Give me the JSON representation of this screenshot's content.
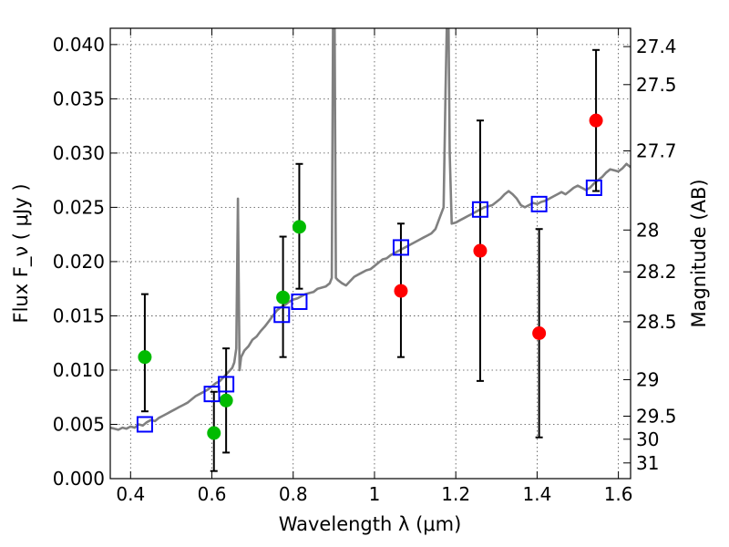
{
  "chart_data": {
    "type": "scatter",
    "title": "",
    "xlabel": "Wavelength  λ (μm)",
    "ylabel": "Flux  F_ν  ( μJy )",
    "ylabel_right": "Magnitude (AB)",
    "xlim": [
      0.35,
      1.63
    ],
    "ylim": [
      0.0,
      0.0415
    ],
    "grid": true,
    "x_ticks": [
      0.4,
      0.6,
      0.8,
      1.0,
      1.2,
      1.4,
      1.6
    ],
    "x_tick_labels": [
      "0.4",
      "0.6",
      "0.8",
      "1",
      "1.2",
      "1.4",
      "1.6"
    ],
    "y_ticks": [
      0.0,
      0.005,
      0.01,
      0.015,
      0.02,
      0.025,
      0.03,
      0.035,
      0.04
    ],
    "y_tick_labels": [
      "0.000",
      "0.005",
      "0.010",
      "0.015",
      "0.020",
      "0.025",
      "0.030",
      "0.035",
      "0.040"
    ],
    "right_axis_ticks": [
      {
        "label": "27.4",
        "mag": 27.4
      },
      {
        "label": "27.5",
        "mag": 27.5
      },
      {
        "label": "27.7",
        "mag": 27.7
      },
      {
        "label": "28",
        "mag": 28.0
      },
      {
        "label": "28.2",
        "mag": 28.2
      },
      {
        "label": "28.5",
        "mag": 28.5
      },
      {
        "label": "29",
        "mag": 29.0
      },
      {
        "label": "29.5",
        "mag": 29.5
      },
      {
        "label": "30",
        "mag": 30.0
      },
      {
        "label": "31",
        "mag": 31.0
      }
    ],
    "template_spectrum": {
      "color": "#808080",
      "points": [
        [
          0.35,
          0.0047
        ],
        [
          0.36,
          0.0046
        ],
        [
          0.37,
          0.0045
        ],
        [
          0.38,
          0.0047
        ],
        [
          0.39,
          0.0046
        ],
        [
          0.4,
          0.0048
        ],
        [
          0.41,
          0.0047
        ],
        [
          0.42,
          0.005
        ],
        [
          0.43,
          0.0049
        ],
        [
          0.44,
          0.0052
        ],
        [
          0.45,
          0.0054
        ],
        [
          0.46,
          0.0053
        ],
        [
          0.47,
          0.0056
        ],
        [
          0.48,
          0.0058
        ],
        [
          0.49,
          0.006
        ],
        [
          0.5,
          0.0062
        ],
        [
          0.51,
          0.0064
        ],
        [
          0.52,
          0.0066
        ],
        [
          0.53,
          0.0068
        ],
        [
          0.54,
          0.007
        ],
        [
          0.55,
          0.0073
        ],
        [
          0.56,
          0.0076
        ],
        [
          0.57,
          0.0078
        ],
        [
          0.58,
          0.008
        ],
        [
          0.59,
          0.0082
        ],
        [
          0.6,
          0.0085
        ],
        [
          0.61,
          0.0088
        ],
        [
          0.62,
          0.009
        ],
        [
          0.63,
          0.0094
        ],
        [
          0.64,
          0.0098
        ],
        [
          0.65,
          0.0102
        ],
        [
          0.655,
          0.0107
        ],
        [
          0.66,
          0.012
        ],
        [
          0.664,
          0.0258
        ],
        [
          0.668,
          0.01
        ],
        [
          0.672,
          0.0112
        ],
        [
          0.68,
          0.0118
        ],
        [
          0.69,
          0.0122
        ],
        [
          0.7,
          0.0128
        ],
        [
          0.71,
          0.0131
        ],
        [
          0.72,
          0.0136
        ],
        [
          0.73,
          0.014
        ],
        [
          0.74,
          0.0145
        ],
        [
          0.75,
          0.015
        ],
        [
          0.76,
          0.0155
        ],
        [
          0.77,
          0.0158
        ],
        [
          0.78,
          0.016
        ],
        [
          0.79,
          0.0163
        ],
        [
          0.8,
          0.0165
        ],
        [
          0.81,
          0.0166
        ],
        [
          0.82,
          0.0168
        ],
        [
          0.83,
          0.017
        ],
        [
          0.84,
          0.0171
        ],
        [
          0.85,
          0.0172
        ],
        [
          0.86,
          0.0175
        ],
        [
          0.87,
          0.0176
        ],
        [
          0.88,
          0.0177
        ],
        [
          0.89,
          0.018
        ],
        [
          0.895,
          0.0185
        ],
        [
          0.898,
          0.042
        ],
        [
          0.902,
          0.042
        ],
        [
          0.905,
          0.0185
        ],
        [
          0.91,
          0.0183
        ],
        [
          0.92,
          0.018
        ],
        [
          0.93,
          0.0178
        ],
        [
          0.94,
          0.0182
        ],
        [
          0.95,
          0.0186
        ],
        [
          0.96,
          0.0188
        ],
        [
          0.97,
          0.019
        ],
        [
          0.98,
          0.0192
        ],
        [
          0.99,
          0.0193
        ],
        [
          1.0,
          0.0196
        ],
        [
          1.01,
          0.0199
        ],
        [
          1.02,
          0.0202
        ],
        [
          1.03,
          0.0203
        ],
        [
          1.04,
          0.0206
        ],
        [
          1.05,
          0.0208
        ],
        [
          1.06,
          0.021
        ],
        [
          1.07,
          0.0212
        ],
        [
          1.08,
          0.0214
        ],
        [
          1.09,
          0.0216
        ],
        [
          1.1,
          0.0218
        ],
        [
          1.11,
          0.022
        ],
        [
          1.12,
          0.0222
        ],
        [
          1.13,
          0.0224
        ],
        [
          1.14,
          0.0226
        ],
        [
          1.15,
          0.023
        ],
        [
          1.16,
          0.024
        ],
        [
          1.17,
          0.025
        ],
        [
          1.175,
          0.036
        ],
        [
          1.178,
          0.042
        ],
        [
          1.182,
          0.042
        ],
        [
          1.185,
          0.03
        ],
        [
          1.19,
          0.0235
        ],
        [
          1.2,
          0.0236
        ],
        [
          1.21,
          0.0238
        ],
        [
          1.22,
          0.024
        ],
        [
          1.23,
          0.0242
        ],
        [
          1.24,
          0.0244
        ],
        [
          1.25,
          0.0246
        ],
        [
          1.26,
          0.0248
        ],
        [
          1.27,
          0.025
        ],
        [
          1.28,
          0.0251
        ],
        [
          1.29,
          0.0252
        ],
        [
          1.3,
          0.0255
        ],
        [
          1.31,
          0.0258
        ],
        [
          1.32,
          0.0262
        ],
        [
          1.33,
          0.0265
        ],
        [
          1.34,
          0.0262
        ],
        [
          1.35,
          0.0258
        ],
        [
          1.36,
          0.0252
        ],
        [
          1.37,
          0.025
        ],
        [
          1.38,
          0.0252
        ],
        [
          1.39,
          0.0254
        ],
        [
          1.4,
          0.0253
        ],
        [
          1.41,
          0.0255
        ],
        [
          1.42,
          0.0256
        ],
        [
          1.43,
          0.0258
        ],
        [
          1.44,
          0.026
        ],
        [
          1.45,
          0.0262
        ],
        [
          1.46,
          0.0264
        ],
        [
          1.47,
          0.0262
        ],
        [
          1.48,
          0.0265
        ],
        [
          1.49,
          0.0268
        ],
        [
          1.5,
          0.027
        ],
        [
          1.51,
          0.0268
        ],
        [
          1.52,
          0.0266
        ],
        [
          1.53,
          0.0268
        ],
        [
          1.54,
          0.0272
        ],
        [
          1.55,
          0.0275
        ],
        [
          1.56,
          0.0278
        ],
        [
          1.57,
          0.0282
        ],
        [
          1.58,
          0.0285
        ],
        [
          1.59,
          0.0284
        ],
        [
          1.6,
          0.0283
        ],
        [
          1.61,
          0.0286
        ],
        [
          1.62,
          0.029
        ],
        [
          1.63,
          0.0287
        ]
      ]
    },
    "model_photometry": {
      "color": "#0000ff",
      "marker": "open-square",
      "points": [
        [
          0.435,
          0.005
        ],
        [
          0.6,
          0.0078
        ],
        [
          0.635,
          0.0087
        ],
        [
          0.772,
          0.0151
        ],
        [
          0.815,
          0.0163
        ],
        [
          1.065,
          0.0213
        ],
        [
          1.26,
          0.0248
        ],
        [
          1.405,
          0.0253
        ],
        [
          1.54,
          0.0268
        ]
      ]
    },
    "detections": {
      "color": "#00bb00",
      "points": [
        {
          "x": 0.435,
          "y": 0.0112,
          "yerr_low": 0.0062,
          "yerr_high": 0.017
        },
        {
          "x": 0.605,
          "y": 0.0042,
          "yerr_low": 0.0007,
          "yerr_high": 0.008
        },
        {
          "x": 0.635,
          "y": 0.0072,
          "yerr_low": 0.0024,
          "yerr_high": 0.012
        },
        {
          "x": 0.775,
          "y": 0.0167,
          "yerr_low": 0.0112,
          "yerr_high": 0.0223
        },
        {
          "x": 0.815,
          "y": 0.0232,
          "yerr_low": 0.0175,
          "yerr_high": 0.029
        }
      ]
    },
    "other_measurements": {
      "color": "#ff0000",
      "points": [
        {
          "x": 1.065,
          "y": 0.0173,
          "yerr_low": 0.0112,
          "yerr_high": 0.0235
        },
        {
          "x": 1.26,
          "y": 0.021,
          "yerr_low": 0.009,
          "yerr_high": 0.033
        },
        {
          "x": 1.405,
          "y": 0.0134,
          "yerr_low": 0.0038,
          "yerr_high": 0.023
        },
        {
          "x": 1.545,
          "y": 0.033,
          "yerr_low": 0.0265,
          "yerr_high": 0.0395
        }
      ]
    }
  }
}
